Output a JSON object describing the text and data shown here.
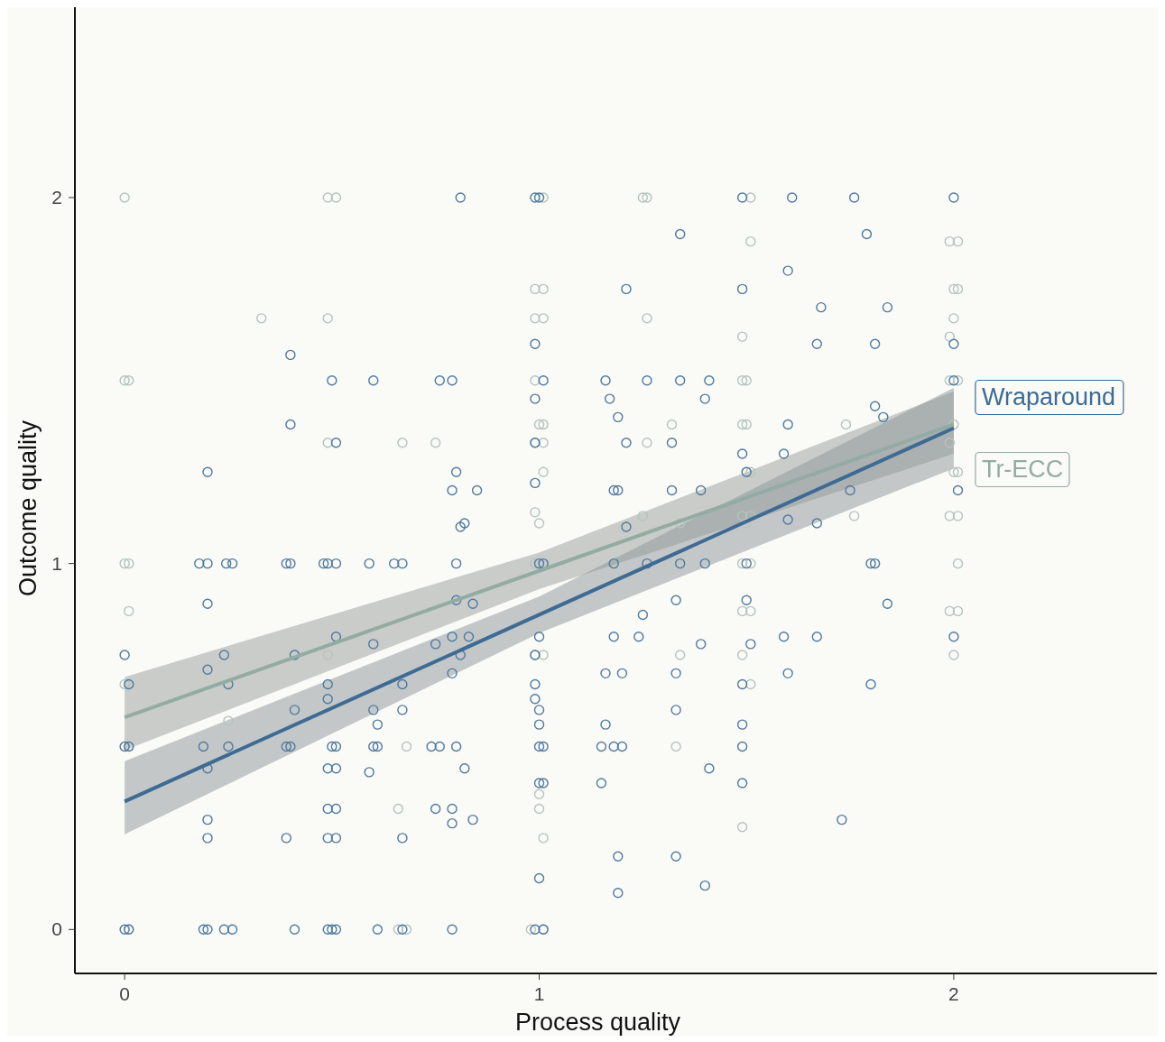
{
  "chart_data": {
    "type": "scatter",
    "xlabel": "Process quality",
    "ylabel": "Outcome quality",
    "xlim": [
      -0.12,
      2.49
    ],
    "ylim": [
      -0.12,
      2.52
    ],
    "xticks": [
      0,
      1,
      2
    ],
    "yticks": [
      0,
      1,
      2
    ],
    "grid": false,
    "legend": false,
    "marker": "circle",
    "series": [
      {
        "color": "#b5c4be",
        "x": [
          0,
          0.49,
          0.51,
          1.25,
          1.26,
          1.51,
          1.01,
          1.51,
          1.99,
          2.01,
          0.99,
          1.01,
          2.0,
          2.01,
          0.33,
          0.49,
          0.99,
          1.01,
          1.26,
          2.0,
          1.49,
          1.99,
          0,
          0.01,
          0.99,
          1.49,
          1.5,
          1.99,
          2.01,
          1.0,
          1.01,
          1.32,
          1.49,
          1.5,
          1.74,
          2.0,
          0.49,
          0.67,
          0.75,
          0.99,
          1.01,
          1.26,
          1.99,
          1.01,
          1.5,
          1.51,
          2.0,
          2.01,
          0.99,
          1.25,
          1.49,
          1.51,
          1.76,
          1.99,
          2.01,
          1.0,
          1.34,
          1.5,
          0,
          0.01,
          0.99,
          1.49,
          1.51,
          2.01,
          0.01,
          1.49,
          1.51,
          1.99,
          2.01,
          0.49,
          0.99,
          1.01,
          1.34,
          1.49,
          2.0,
          0,
          0.01,
          0.65,
          1.51,
          0.25,
          0.01,
          0.68,
          1.33,
          0.66,
          1.0,
          1.0,
          1.49,
          1.01,
          0.01,
          0.66,
          0.68,
          0.98,
          1.01
        ],
        "values": [
          2,
          2,
          2,
          2,
          2,
          2,
          2,
          1.88,
          1.88,
          1.88,
          1.75,
          1.75,
          1.75,
          1.75,
          1.67,
          1.67,
          1.67,
          1.67,
          1.67,
          1.67,
          1.62,
          1.62,
          1.5,
          1.5,
          1.5,
          1.5,
          1.5,
          1.5,
          1.5,
          1.38,
          1.38,
          1.38,
          1.38,
          1.38,
          1.38,
          1.38,
          1.33,
          1.33,
          1.33,
          1.33,
          1.33,
          1.33,
          1.33,
          1.25,
          1.25,
          1.25,
          1.25,
          1.25,
          1.14,
          1.13,
          1.13,
          1.13,
          1.13,
          1.13,
          1.13,
          1.11,
          1.11,
          1.11,
          1,
          1,
          1,
          1,
          1,
          1,
          0.87,
          0.87,
          0.87,
          0.87,
          0.87,
          0.75,
          0.75,
          0.75,
          0.75,
          0.75,
          0.75,
          0.67,
          0.67,
          0.67,
          0.67,
          0.57,
          0.5,
          0.5,
          0.5,
          0.33,
          0.33,
          0.37,
          0.28,
          0.25,
          0,
          0,
          0,
          0,
          0
        ]
      },
      {
        "color": "#4f7aa0",
        "x": [
          0.81,
          0.99,
          1.0,
          1.49,
          1.61,
          1.76,
          2.0,
          1.34,
          1.79,
          1.6,
          1.21,
          1.49,
          1.68,
          1.84,
          1.67,
          1.81,
          2.0,
          0.99,
          0.4,
          0.5,
          0.6,
          0.76,
          0.79,
          1.01,
          1.16,
          1.26,
          1.34,
          1.41,
          2.0,
          0.99,
          1.17,
          1.4,
          1.81,
          0.4,
          1.19,
          1.6,
          1.83,
          0.51,
          1.21,
          1.32,
          0.99,
          1.49,
          1.59,
          0.2,
          0.8,
          1.5,
          0.79,
          0.85,
          0.99,
          1.18,
          1.19,
          1.32,
          1.39,
          1.75,
          2.01,
          0.81,
          0.82,
          1.21,
          1.6,
          1.67,
          0.18,
          0.2,
          0.245,
          0.26,
          0.39,
          0.4,
          0.48,
          0.49,
          0.51,
          0.59,
          0.65,
          0.67,
          0.8,
          1.0,
          1.01,
          1.18,
          1.26,
          1.34,
          1.4,
          1.5,
          1.8,
          1.81,
          0.2,
          0.8,
          0.84,
          1.33,
          1.5,
          1.84,
          1.25,
          0.51,
          0.6,
          0.79,
          0.83,
          1.0,
          1.18,
          1.24,
          1.51,
          1.59,
          1.67,
          2.0,
          0,
          0.24,
          0.41,
          0.75,
          0.81,
          0.99,
          0.2,
          0.79,
          1.16,
          1.2,
          1.33,
          1.39,
          1.6,
          0.01,
          0.25,
          0.49,
          0.67,
          0.99,
          1.49,
          1.8,
          0.49,
          0.99,
          0.41,
          0.6,
          0.67,
          1.0,
          1.33,
          0.61,
          1.0,
          1.16,
          1.49,
          0,
          0.01,
          0.19,
          0.25,
          0.39,
          0.4,
          0.5,
          0.51,
          0.6,
          0.61,
          0.74,
          0.76,
          0.8,
          1.0,
          1.01,
          1.15,
          1.18,
          1.2,
          1.49,
          0.2,
          0.49,
          0.51,
          0.82,
          1.41,
          0.59,
          1.0,
          1.01,
          1.15,
          1.49,
          0.49,
          0.51,
          0.75,
          0.79,
          0.2,
          0.79,
          0.84,
          1.73,
          0.2,
          0.39,
          0.49,
          0.51,
          0.67,
          1.19,
          1.33,
          1.0,
          1.4,
          1.19,
          0,
          0.01,
          0.19,
          0.2,
          0.24,
          0.26,
          0.41,
          0.49,
          0.5,
          0.51,
          0.61,
          0.67,
          0.79,
          0.99,
          1.01
        ],
        "values": [
          2,
          2,
          2,
          2,
          2,
          2,
          2,
          1.9,
          1.9,
          1.8,
          1.75,
          1.75,
          1.7,
          1.7,
          1.6,
          1.6,
          1.6,
          1.6,
          1.57,
          1.5,
          1.5,
          1.5,
          1.5,
          1.5,
          1.5,
          1.5,
          1.5,
          1.5,
          1.5,
          1.45,
          1.45,
          1.45,
          1.43,
          1.38,
          1.4,
          1.38,
          1.4,
          1.33,
          1.33,
          1.33,
          1.33,
          1.3,
          1.3,
          1.25,
          1.25,
          1.25,
          1.2,
          1.2,
          1.22,
          1.2,
          1.2,
          1.2,
          1.2,
          1.2,
          1.2,
          1.1,
          1.11,
          1.1,
          1.12,
          1.11,
          1,
          1,
          1,
          1,
          1,
          1,
          1,
          1,
          1,
          1,
          1,
          1,
          1,
          1,
          1,
          1,
          1,
          1,
          1,
          1,
          1,
          1,
          0.89,
          0.9,
          0.89,
          0.9,
          0.9,
          0.89,
          0.86,
          0.8,
          0.78,
          0.8,
          0.8,
          0.8,
          0.8,
          0.8,
          0.78,
          0.8,
          0.8,
          0.8,
          0.75,
          0.75,
          0.75,
          0.78,
          0.75,
          0.75,
          0.71,
          0.7,
          0.7,
          0.7,
          0.7,
          0.78,
          0.7,
          0.67,
          0.67,
          0.67,
          0.67,
          0.67,
          0.67,
          0.67,
          0.63,
          0.63,
          0.6,
          0.6,
          0.6,
          0.6,
          0.6,
          0.56,
          0.56,
          0.56,
          0.56,
          0.5,
          0.5,
          0.5,
          0.5,
          0.5,
          0.5,
          0.5,
          0.5,
          0.5,
          0.5,
          0.5,
          0.5,
          0.5,
          0.5,
          0.5,
          0.5,
          0.5,
          0.5,
          0.5,
          0.44,
          0.44,
          0.44,
          0.44,
          0.44,
          0.43,
          0.4,
          0.4,
          0.4,
          0.4,
          0.33,
          0.33,
          0.33,
          0.33,
          0.3,
          0.29,
          0.3,
          0.3,
          0.25,
          0.25,
          0.25,
          0.25,
          0.25,
          0.2,
          0.2,
          0.14,
          0.12,
          0.1,
          0,
          0,
          0,
          0,
          0,
          0,
          0,
          0,
          0,
          0,
          0,
          0,
          0,
          0,
          0
        ]
      },
      {
        "type": "line",
        "name": "Tr-ECC",
        "color": "#93aca3",
        "marker": "none",
        "x": [
          0,
          1,
          2
        ],
        "values": [
          0.58,
          0.98,
          1.38
        ],
        "lower": [
          0.49,
          0.93,
          1.3
        ],
        "upper": [
          0.69,
          1.03,
          1.47
        ]
      },
      {
        "type": "line",
        "name": "Wraparound",
        "color": "#3d6b93",
        "marker": "none",
        "x": [
          0,
          1,
          2
        ],
        "values": [
          0.35,
          0.86,
          1.37
        ],
        "lower": [
          0.26,
          0.81,
          1.26
        ],
        "upper": [
          0.46,
          0.91,
          1.48
        ]
      }
    ]
  }
}
